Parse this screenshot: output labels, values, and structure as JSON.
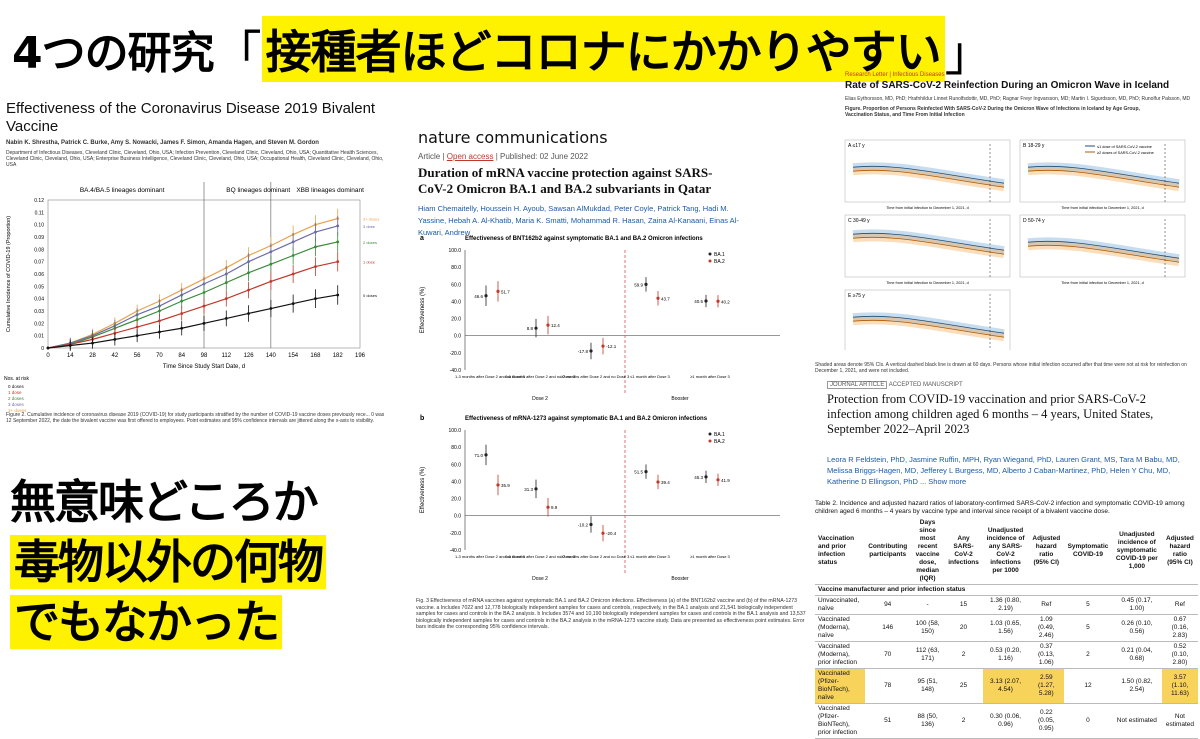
{
  "headline": {
    "prefix": "4つの研究",
    "open": "「",
    "highlight": "接種者ほどコロナにかかりやすい",
    "close": "」"
  },
  "caption": {
    "line1": "無意味どころか",
    "line2": "毒物以外の何物",
    "line3": "でもなかった"
  },
  "paper1": {
    "title": "Effectiveness of the Coronavirus Disease 2019 Bivalent Vaccine",
    "authors": "Nabin K. Shrestha, Patrick C. Burke, Amy S. Nowacki, James F. Simon, Amanda Hagen, and Steven M. Gordon",
    "affil": "Department of Infectious Diseases, Cleveland Clinic, Cleveland, Ohio, USA; Infection Prevention, Cleveland Clinic, Cleveland, Ohio, USA; Quantitative Health Sciences, Cleveland Clinic, Cleveland, Ohio, USA; Enterprise Business Intelligence, Cleveland Clinic, Cleveland, Ohio, USA; Occupational Health, Cleveland Clinic, Cleveland, Ohio, USA",
    "phases": [
      "BA.4/BA.5 lineages dominant",
      "BQ lineages dominant",
      "XBB lineages dominant"
    ],
    "ylabel": "Cumulative Incidence of COVID-19 (Proportion)",
    "xlabel": "Time Since Study Start Date, d",
    "xticks": [
      "0",
      "14",
      "28",
      "42",
      "56",
      "70",
      "84",
      "98",
      "112",
      "126",
      "140",
      "154",
      "168",
      "182",
      "196"
    ],
    "yticks": [
      "0.12",
      "0.11",
      "0.10",
      "0.09",
      "0.08",
      "0.07",
      "0.06",
      "0.05",
      "0.04",
      "0.03",
      "0.02",
      "0.01",
      "0"
    ],
    "legend": [
      "3+ doses",
      "3 dose",
      "2 doses",
      "1 dose",
      "0 doses"
    ],
    "series_colors": [
      "#e8a24a",
      "#6c6ca8",
      "#3b8a3b",
      "#c0392b",
      "#111111"
    ],
    "risk_label": "Nos. at risk",
    "risk_rows": [
      "0 doses",
      "1 dose",
      "2 doses",
      "3 doses",
      "3+ doses"
    ],
    "caption": "Figure 2. Cumulative incidence of coronavirus disease 2019 (COVID-19) for study participants stratified by the number of COVID-19 vaccine doses previously rece... 0 was 12 September 2022, the date the bivalent vaccine was first offered to employees. Point estimates and 95% confidence intervals are jittered along the x-axis to visibility."
  },
  "paper2": {
    "journal": "nature communications",
    "meta_article": "Article",
    "meta_open": "Open access",
    "meta_pub": "Published: 02 June 2022",
    "title": "Duration of mRNA vaccine protection against SARS-CoV-2 Omicron BA.1 and BA.2 subvariants in Qatar",
    "authors": "Hiam Chemaitelly, Houssein H. Ayoub, Sawsan AlMukdad, Peter Coyle, Patrick Tang, Hadi M. Yassine, Hebah A. Al-Khatib, Maria K. Smatti, Mohammad R. Hasan, Zaina Al-Kanaani, Einas Al-Kuwari, Andrew",
    "chartA_title": "Effectiveness of BNT162b2 against symptomatic BA.1 and BA.2 Omicron infections",
    "chartB_title": "Effectiveness of mRNA-1273 against symptomatic BA.1 and BA.2 Omicron infections",
    "ylabel": "Effectiveness (%)",
    "cats": [
      "1-3 months after Dose 2 and no Dose 3",
      "4-6 months after Dose 2 and no Dose 3",
      "≥7 months after Dose 2 and no Dose 3",
      "≤1 month after Dose 3",
      "≥1 month after Dose 3"
    ],
    "group_dose2": "Dose 2",
    "group_booster": "Booster",
    "legend": [
      "BA.1",
      "BA.2"
    ],
    "caption": "Fig. 3 Effectiveness of mRNA vaccines against symptomatic BA.1 and BA.2 Omicron infections. Effectiveness (a) of the BNT162b2 vaccine and (b) of the mRNA-1273 vaccine. a Includes 7022 and 12,778 biologically independent samples for cases and controls, respectively, in the BA.1 analysis and 21,541 biologically independent samples for cases and controls in the BA.2 analysis. b Includes 3574 and 10,190 biologically independent samples for cases and controls in the BA.1 analysis and 13,537 biologically independent samples for cases and controls in the BA.2 analysis in the mRNA-1273 vaccine study. Data are presented as effectiveness point estimates. Error bars indicate the corresponding 95% confidence intervals."
  },
  "chart_data": [
    {
      "type": "line",
      "title": "",
      "xlabel": "Time Since Study Start Date, d",
      "ylabel": "Cumulative Incidence of COVID-19 (Proportion)",
      "x": [
        0,
        14,
        28,
        42,
        56,
        70,
        84,
        98,
        112,
        126,
        140,
        154,
        168,
        182
      ],
      "ylim": [
        0,
        0.12
      ],
      "series": [
        {
          "name": "3+ doses",
          "values": [
            0,
            0.004,
            0.011,
            0.02,
            0.03,
            0.038,
            0.047,
            0.056,
            0.065,
            0.075,
            0.083,
            0.092,
            0.1,
            0.105
          ]
        },
        {
          "name": "3 dose",
          "values": [
            0,
            0.004,
            0.01,
            0.018,
            0.027,
            0.034,
            0.043,
            0.052,
            0.06,
            0.07,
            0.078,
            0.086,
            0.094,
            0.099
          ]
        },
        {
          "name": "2 doses",
          "values": [
            0,
            0.003,
            0.009,
            0.016,
            0.023,
            0.03,
            0.038,
            0.045,
            0.053,
            0.061,
            0.068,
            0.075,
            0.082,
            0.086
          ]
        },
        {
          "name": "1 dose",
          "values": [
            0,
            0.003,
            0.007,
            0.012,
            0.017,
            0.022,
            0.028,
            0.034,
            0.04,
            0.047,
            0.054,
            0.06,
            0.066,
            0.07
          ]
        },
        {
          "name": "0 doses",
          "values": [
            0,
            0.002,
            0.004,
            0.007,
            0.01,
            0.013,
            0.016,
            0.02,
            0.024,
            0.028,
            0.032,
            0.036,
            0.04,
            0.043
          ]
        }
      ]
    },
    {
      "type": "scatter",
      "title": "Effectiveness of BNT162b2 against symptomatic BA.1 and BA.2 Omicron infections",
      "ylim": [
        -40,
        100
      ],
      "series": [
        {
          "name": "BA.1",
          "values": [
            46.6,
            8.8,
            -17.8,
            59.9,
            40.5
          ]
        },
        {
          "name": "BA.2",
          "values": [
            51.7,
            12.4,
            -12.1,
            43.7,
            40.2
          ]
        }
      ]
    },
    {
      "type": "scatter",
      "title": "Effectiveness of mRNA-1273 against symptomatic BA.1 and BA.2 Omicron infections",
      "ylim": [
        -40,
        100
      ],
      "series": [
        {
          "name": "BA.1",
          "values": [
            71.0,
            31.3,
            -10.2,
            51.5,
            45.3
          ]
        },
        {
          "name": "BA.2",
          "values": [
            35.9,
            9.9,
            -20.4,
            39.4,
            41.9
          ]
        }
      ]
    }
  ],
  "paper3": {
    "kicker": "Research Letter | Infectious Diseases",
    "title": "Rate of SARS-CoV-2 Reinfection During an Omicron Wave in Iceland",
    "authors": "Elias Eythorsson, MD, PhD; Hrafnhildur Linnet Runolfsdottir, MD, PhD; Ragnar Freyr Ingvarsson, MD; Martin I. Sigurdsson, MD, PhD; Runolfur Palsson, MD",
    "fig_title": "Figure. Proportion of Persons Reinfected With SARS-CoV-2 During the Omicron Wave of Infections in Iceland by Age Group, Vaccination Status, and Time From Initial Infection",
    "panels": [
      "A ≤17 y",
      "B 18-29 y",
      "C 30-49 y",
      "D 50-74 y",
      "E ≥75 y"
    ],
    "legend": [
      "≤1 dose of SARS-CoV-2 vaccine",
      "≥2 doses of SARS-CoV-2 vaccine"
    ],
    "xlabel": "Time from initial infection to December 1, 2021, d",
    "ylabel": "Proportion reinfected, %",
    "note": "Shaded areas denote 95% CIs. A vertical dashed black line is drawn at 60 days. Persons whose initial infection occurred after that time were not at risk for reinfection on December 1, 2021, and were not included."
  },
  "paper4": {
    "badge": "JOURNAL ARTICLE",
    "status": "ACCEPTED MANUSCRIPT",
    "title": "Protection from COVID-19 vaccination and prior SARS-CoV-2 infection among children aged 6 months – 4 years, United States, September 2022–April 2023",
    "authors": "Leora R Feldstein, PhD, Jasmine Ruffin, MPH, Ryan Wiegand, PhD, Lauren Grant, MS, Tara M Babu, MD, Melissa Briggs-Hagen, MD, Jefferey L Burgess, MD, Alberto J Caban-Martinez, PhD, Helen Y Chu, MD, Katherine D Ellingson, PhD ... Show more",
    "table_caption": "Table 2. Incidence and adjusted hazard ratios of laboratory-confirmed SARS-CoV-2 infection and symptomatic COVID-19 among children aged 6 months – 4 years by vaccine type and interval since receipt of a bivalent vaccine dose.",
    "headers": [
      "Vaccination and prior infection status",
      "Contributing participants",
      "Days since most recent vaccine dose, median (IQR)",
      "Any SARS-CoV-2 infections",
      "Unadjusted incidence of any SARS-CoV-2 infections per 1000",
      "Adjusted hazard ratio (95% CI)",
      "Symptomatic COVID-19",
      "Unadjusted incidence of symptomatic COVID-19 per 1,000",
      "Adjusted hazard ratio (95% CI)"
    ],
    "section": "Vaccine manufacturer and prior infection status",
    "rows": [
      [
        "Unvaccinated, naïve",
        "94",
        "-",
        "15",
        "1.36 (0.80, 2.19)",
        "Ref",
        "5",
        "0.45 (0.17, 1.00)",
        "Ref"
      ],
      [
        "Vaccinated (Moderna), naïve",
        "146",
        "100 (58, 150)",
        "20",
        "1.03 (0.65, 1.56)",
        "1.09 (0.49, 2.46)",
        "5",
        "0.26 (0.10, 0.56)",
        "0.67 (0.16, 2.83)"
      ],
      [
        "Vaccinated (Moderna), prior infection",
        "70",
        "112 (63, 171)",
        "2",
        "0.53 (0.20, 1.16)",
        "0.37 (0.13, 1.06)",
        "2",
        "0.21 (0.04, 0.68)",
        "0.52 (0.10, 2.80)"
      ],
      [
        "Vaccinated (Pfizer-BioNTech), naïve",
        "78",
        "95 (51, 148)",
        "25",
        "3.13 (2.07, 4.54)",
        "2.59 (1.27, 5.28)",
        "12",
        "1.50 (0.82, 2.54)",
        "3.57 (1.10, 11.63)"
      ],
      [
        "Vaccinated (Pfizer-BioNTech), prior infection",
        "51",
        "88 (50, 136)",
        "2",
        "0.30 (0.06, 0.96)",
        "0.22 (0.05, 0.95)",
        "0",
        "Not estimated",
        "Not estimated"
      ]
    ]
  }
}
